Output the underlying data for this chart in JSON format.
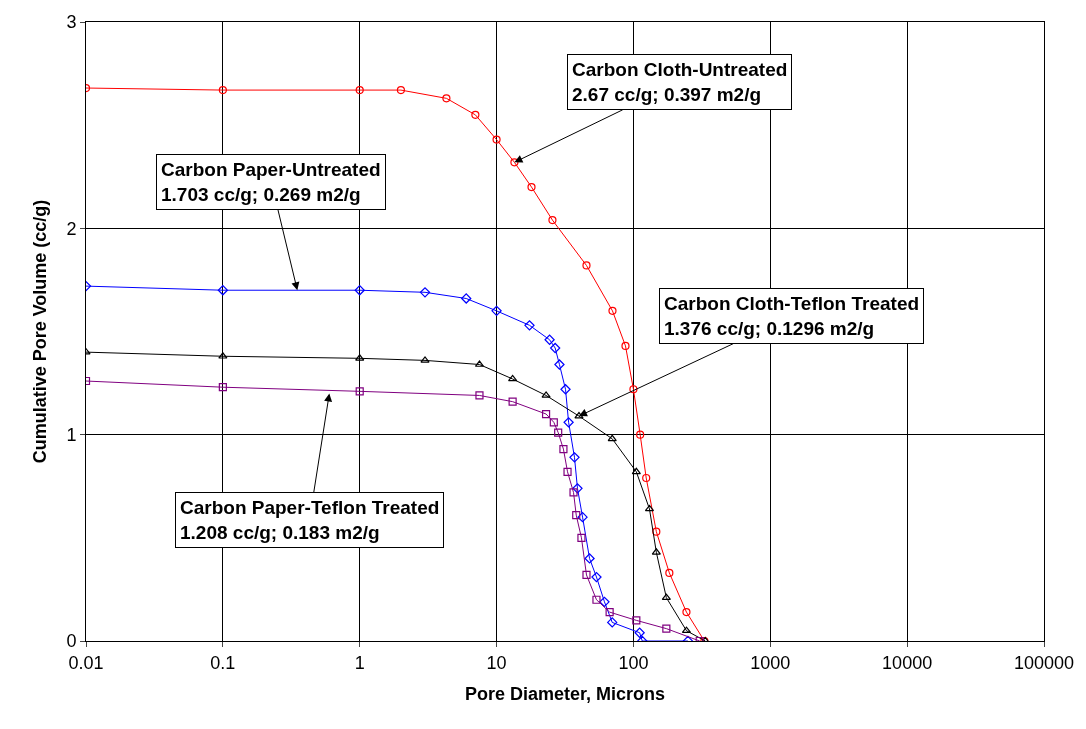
{
  "chart_data": {
    "type": "line",
    "xlabel": "Pore Diameter, Microns",
    "ylabel": "Cumulative Pore Volume (cc/g)",
    "log": "x",
    "grid": true,
    "line_style": "solid",
    "xlim": [
      0.01,
      100000
    ],
    "xticks": [
      0.01,
      0.1,
      1,
      10,
      100,
      1000,
      10000,
      100000
    ],
    "ylim": [
      0,
      3
    ],
    "yticks": [
      0,
      1,
      2,
      3
    ],
    "series": [
      {
        "color": "#ff0000",
        "marker": "circle",
        "x": [
          0.01,
          0.1,
          1,
          2,
          4.3,
          7,
          10,
          13.5,
          18,
          25.6,
          45.4,
          70.3,
          87.5,
          100,
          112,
          124,
          147,
          183,
          244,
          330
        ],
        "values": [
          2.68,
          2.67,
          2.67,
          2.67,
          2.63,
          2.55,
          2.43,
          2.32,
          2.2,
          2.04,
          1.82,
          1.6,
          1.43,
          1.22,
          1.0,
          0.79,
          0.53,
          0.33,
          0.14,
          0.0
        ]
      },
      {
        "color": "#0000ff",
        "marker": "diamond",
        "x": [
          0.01,
          0.1,
          1,
          3,
          6,
          10,
          17.4,
          24.4,
          26.8,
          28.8,
          31.9,
          33.6,
          37.1,
          39,
          42.5,
          47.8,
          53.7,
          61.4,
          70,
          111,
          116,
          250
        ],
        "values": [
          1.72,
          1.7,
          1.7,
          1.69,
          1.66,
          1.6,
          1.53,
          1.46,
          1.42,
          1.34,
          1.22,
          1.06,
          0.89,
          0.74,
          0.6,
          0.4,
          0.31,
          0.19,
          0.09,
          0.04,
          0.0,
          0.0
        ]
      },
      {
        "color": "#000000",
        "marker": "triangle",
        "x": [
          0.01,
          0.1,
          1,
          3,
          7.5,
          13.1,
          23,
          40,
          70,
          105,
          131,
          147,
          174,
          244,
          335
        ],
        "values": [
          1.4,
          1.38,
          1.37,
          1.36,
          1.34,
          1.27,
          1.19,
          1.09,
          0.98,
          0.82,
          0.64,
          0.43,
          0.21,
          0.05,
          0.0
        ]
      },
      {
        "color": "#800080",
        "marker": "square",
        "x": [
          0.01,
          0.1,
          1,
          7.5,
          13.1,
          23,
          26.2,
          28.2,
          30.8,
          33,
          36.5,
          38.2,
          41.7,
          45.4,
          53.7,
          67,
          105,
          174,
          305
        ],
        "values": [
          1.26,
          1.23,
          1.21,
          1.19,
          1.16,
          1.1,
          1.06,
          1.01,
          0.93,
          0.82,
          0.72,
          0.61,
          0.5,
          0.32,
          0.2,
          0.14,
          0.1,
          0.06,
          0.0
        ]
      }
    ],
    "annotations": [
      {
        "text": "Carbon Cloth-Untreated\n2.67 cc/g; 0.397 m2/g",
        "x": 13.5,
        "y": 2.32
      },
      {
        "text": "Carbon Paper-Untreated\n1.703 cc/g; 0.269 m2/g",
        "x": 0.35,
        "y": 1.7
      },
      {
        "text": "Carbon Cloth-Teflon Treated\n1.376 cc/g; 0.1296 m2/g",
        "x": 40,
        "y": 1.09
      },
      {
        "text": "Carbon Paper-Teflon Treated\n1.208 cc/g; 0.183 m2/g",
        "x": 0.6,
        "y": 1.2
      }
    ]
  }
}
